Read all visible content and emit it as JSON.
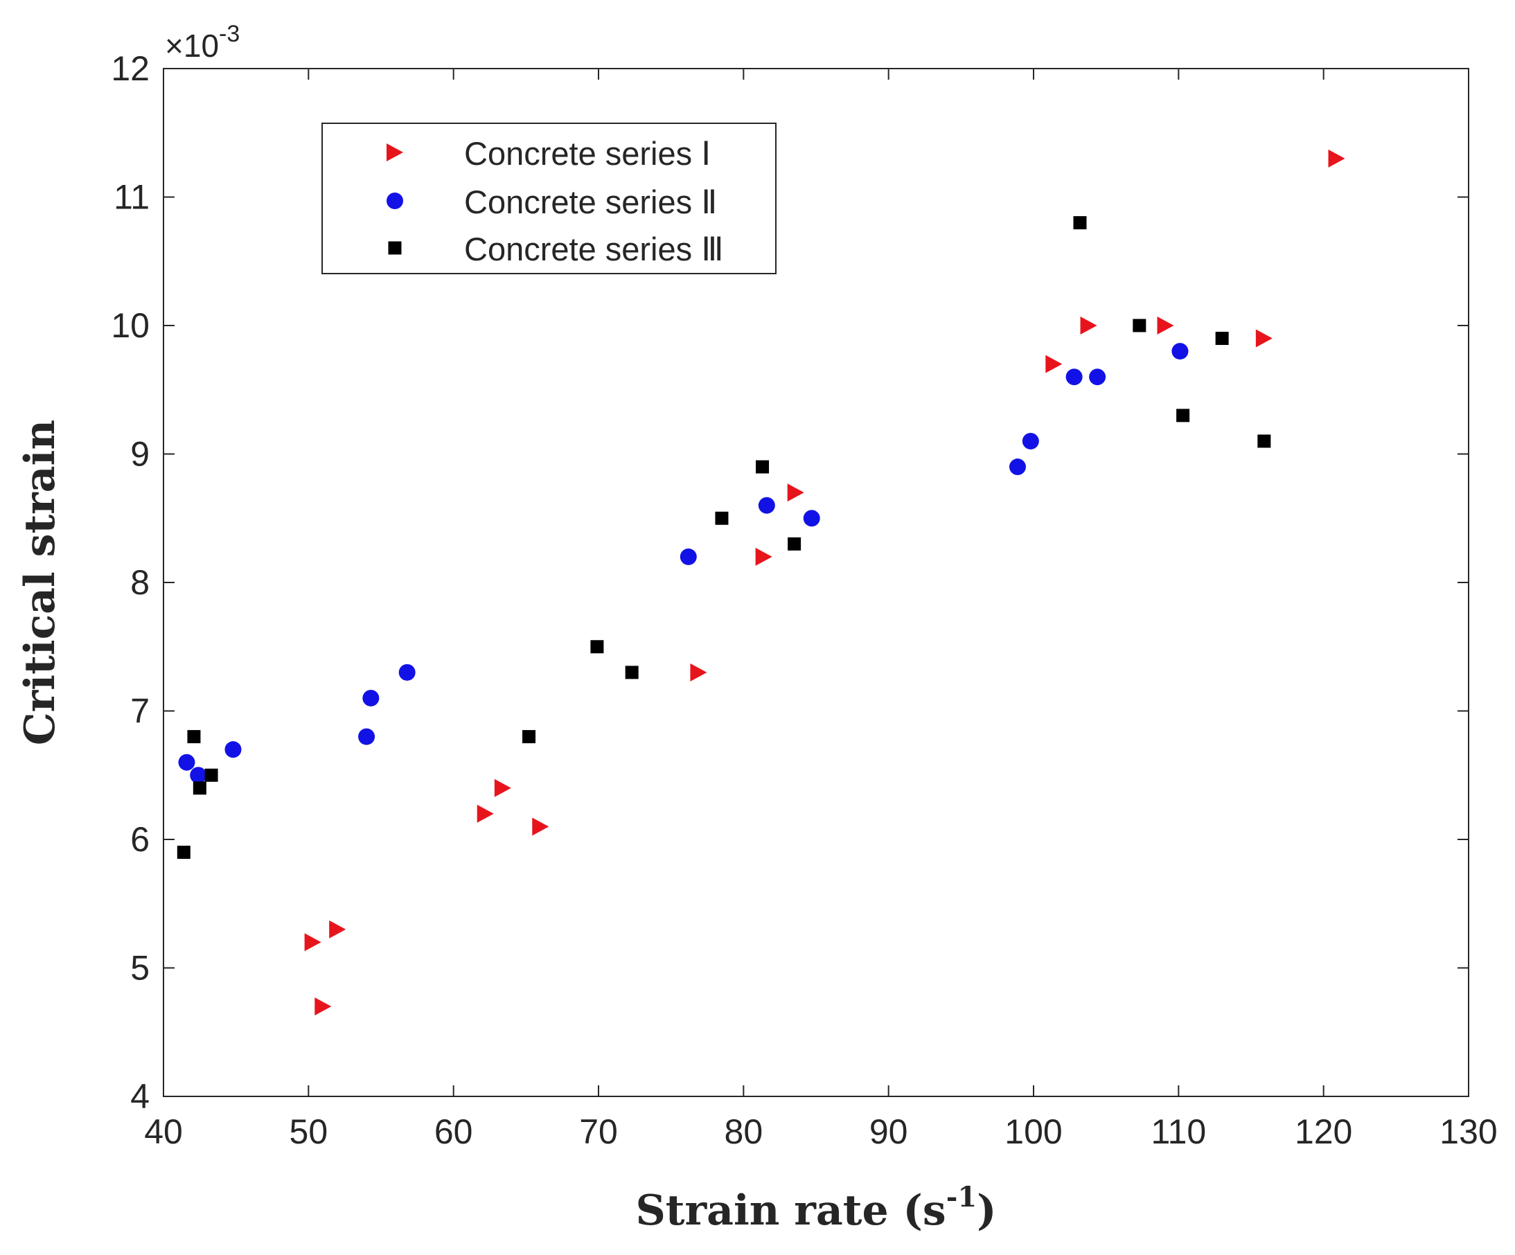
{
  "chart_data": {
    "type": "scatter",
    "xlabel": "Strain rate (s",
    "xlabel_sup": "-1",
    "xlabel_close": ")",
    "ylabel": "Critical strain",
    "y_multiplier_prefix": "×10",
    "y_multiplier_exp": "-3",
    "xlim": [
      40,
      130
    ],
    "ylim": [
      4,
      12
    ],
    "x_ticks": [
      40,
      50,
      60,
      70,
      80,
      90,
      100,
      110,
      120,
      130
    ],
    "y_ticks": [
      4,
      5,
      6,
      7,
      8,
      9,
      10,
      11,
      12
    ],
    "grid": false,
    "legend_position": "top-left",
    "series": [
      {
        "name": "Concrete series Ⅰ",
        "marker": "triangle-right",
        "color": "#e8141c",
        "points": [
          [
            50.3,
            5.2
          ],
          [
            52.0,
            5.3
          ],
          [
            51.0,
            4.7
          ],
          [
            62.2,
            6.2
          ],
          [
            63.4,
            6.4
          ],
          [
            66.0,
            6.1
          ],
          [
            76.9,
            7.3
          ],
          [
            81.4,
            8.2
          ],
          [
            83.6,
            8.7
          ],
          [
            101.4,
            9.7
          ],
          [
            103.8,
            10.0
          ],
          [
            109.1,
            10.0
          ],
          [
            115.9,
            9.9
          ],
          [
            120.9,
            11.3
          ]
        ]
      },
      {
        "name": "Concrete series Ⅱ",
        "marker": "circle",
        "color": "#1212e6",
        "points": [
          [
            41.6,
            6.6
          ],
          [
            42.4,
            6.5
          ],
          [
            44.8,
            6.7
          ],
          [
            54.0,
            6.8
          ],
          [
            54.3,
            7.1
          ],
          [
            56.8,
            7.3
          ],
          [
            76.2,
            8.2
          ],
          [
            81.6,
            8.6
          ],
          [
            84.7,
            8.5
          ],
          [
            98.9,
            8.9
          ],
          [
            99.8,
            9.1
          ],
          [
            102.8,
            9.6
          ],
          [
            104.4,
            9.6
          ],
          [
            110.1,
            9.8
          ]
        ]
      },
      {
        "name": "Concrete series Ⅲ",
        "marker": "square",
        "color": "#000000",
        "points": [
          [
            41.4,
            5.9
          ],
          [
            42.1,
            6.8
          ],
          [
            42.5,
            6.4
          ],
          [
            43.3,
            6.5
          ],
          [
            65.2,
            6.8
          ],
          [
            69.9,
            7.5
          ],
          [
            72.3,
            7.3
          ],
          [
            78.5,
            8.5
          ],
          [
            81.3,
            8.9
          ],
          [
            83.5,
            8.3
          ],
          [
            103.2,
            10.8
          ],
          [
            107.3,
            10.0
          ],
          [
            110.3,
            9.3
          ],
          [
            113.0,
            9.9
          ],
          [
            115.9,
            9.1
          ]
        ]
      }
    ]
  }
}
